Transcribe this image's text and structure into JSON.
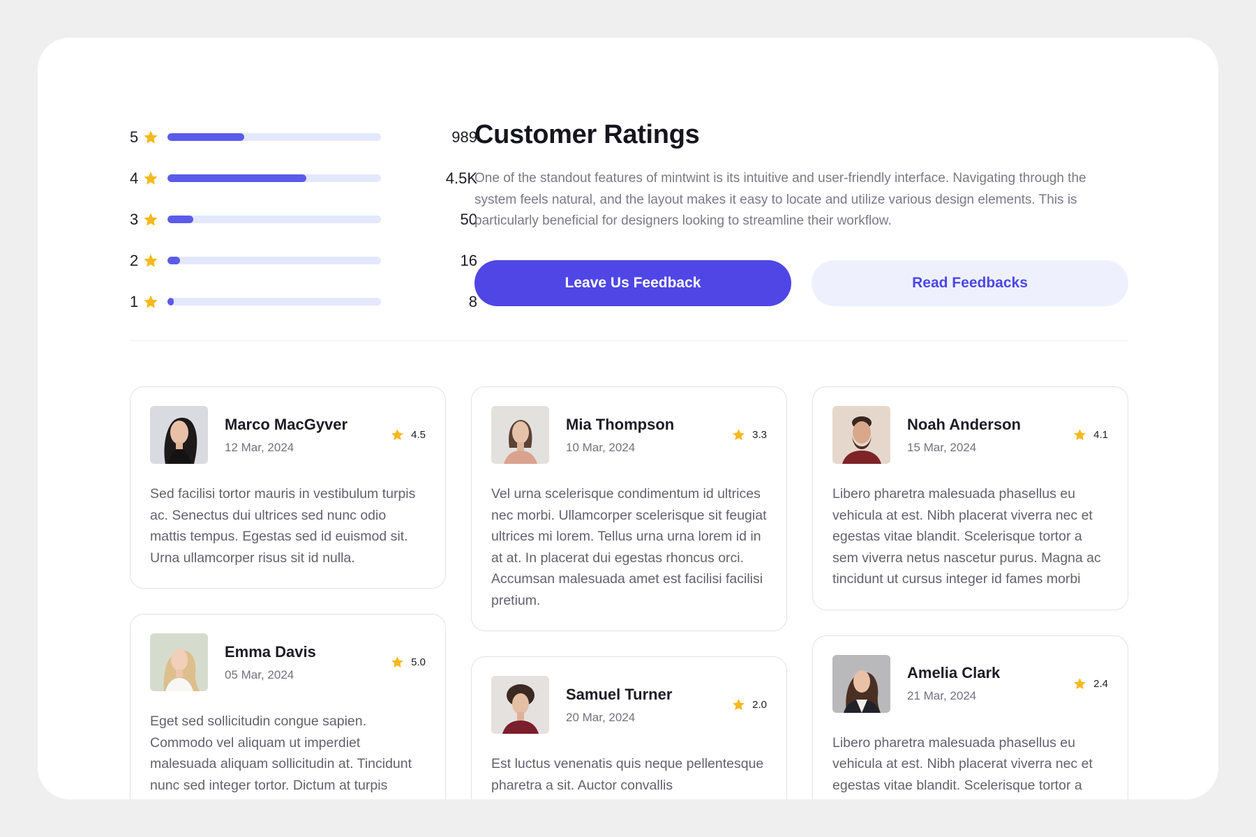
{
  "ratings": [
    {
      "level": "5",
      "count": "989",
      "fill": 0.36
    },
    {
      "level": "4",
      "count": "4.5K",
      "fill": 0.65
    },
    {
      "level": "3",
      "count": "50",
      "fill": 0.12
    },
    {
      "level": "2",
      "count": "16",
      "fill": 0.06
    },
    {
      "level": "1",
      "count": "8",
      "fill": 0.03
    }
  ],
  "intro": {
    "title": "Customer Ratings",
    "description": "One of the standout features of mintwint is its intuitive and user-friendly interface. Navigating through the system feels natural, and the layout makes it easy to locate and utilize various design elements. This is particularly beneficial for designers looking to streamline their workflow.",
    "primary_button": "Leave Us Feedback",
    "secondary_button": "Read Feedbacks"
  },
  "colors": {
    "accent": "#4f46e5",
    "star": "#f6b91d",
    "track": "#e4e8fd"
  },
  "reviews": [
    {
      "name": "Marco MacGyver",
      "date": "12 Mar, 2024",
      "score": "4.5",
      "text": "Sed facilisi tortor mauris in vestibulum turpis ac. Senectus dui ultrices sed nunc odio mattis tempus. Egestas sed id euismod sit. Urna ullamcorper risus sit id nulla."
    },
    {
      "name": "Emma Davis",
      "date": "05 Mar, 2024",
      "score": "5.0",
      "text": "Eget sed sollicitudin congue sapien. Commodo vel aliquam ut imperdiet malesuada aliquam sollicitudin at. Tincidunt nunc sed integer tortor. Dictum at turpis"
    },
    {
      "name": "Mia Thompson",
      "date": "10 Mar, 2024",
      "score": "3.3",
      "text": "Vel urna scelerisque condimentum id ultrices nec morbi. Ullamcorper scelerisque sit feugiat ultrices mi lorem. Tellus urna urna lorem id in at at. In placerat dui egestas rhoncus orci. Accumsan malesuada amet est facilisi facilisi pretium."
    },
    {
      "name": "Samuel Turner",
      "date": "20 Mar, 2024",
      "score": "2.0",
      "text": "Est luctus venenatis quis neque pellentesque pharetra a sit. Auctor convallis"
    },
    {
      "name": "Noah Anderson",
      "date": "15 Mar, 2024",
      "score": "4.1",
      "text": "Libero pharetra malesuada phasellus eu vehicula at est. Nibh placerat viverra nec et egestas vitae blandit. Scelerisque tortor a sem viverra netus nascetur purus. Magna ac tincidunt ut cursus integer id fames morbi"
    },
    {
      "name": "Amelia Clark",
      "date": "21 Mar, 2024",
      "score": "2.4",
      "text": "Libero pharetra malesuada phasellus eu vehicula at est. Nibh placerat viverra nec et egestas vitae blandit. Scelerisque tortor a"
    }
  ]
}
